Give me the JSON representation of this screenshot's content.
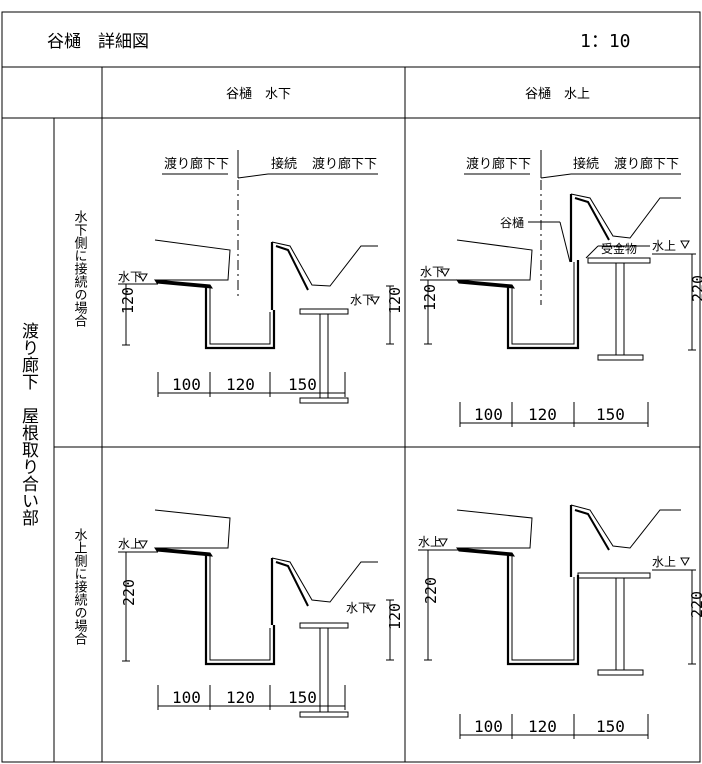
{
  "header": {
    "title": "谷樋　詳細図",
    "scale": "1：10"
  },
  "columns": {
    "left": "谷樋　水下",
    "right": "谷樋　水上"
  },
  "row_group_label": "渡り廊下　屋根取り合い部",
  "rows": {
    "top": "水下側に接続の場合",
    "bottom": "水上側に接続の場合"
  },
  "labels": {
    "watari_roka_shita": "渡り廊下",
    "setsuzoku": "接続",
    "watari_roka": "渡り廊下",
    "tanitoi": "谷樋",
    "ukekanamono": "受金物",
    "mizushita": "水下",
    "mizukami": "水上"
  },
  "dims": {
    "d100": "100",
    "d120": "120",
    "d150": "150",
    "d220": "220"
  }
}
